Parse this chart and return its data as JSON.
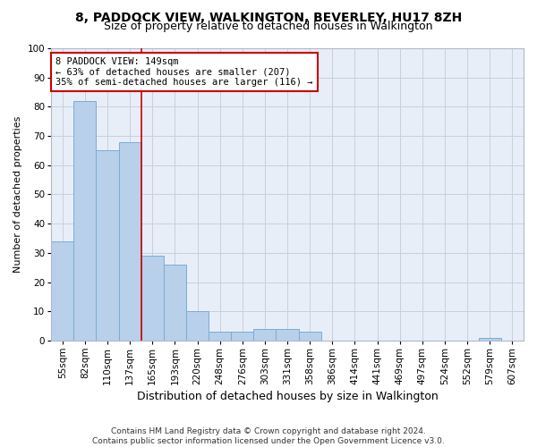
{
  "title": "8, PADDOCK VIEW, WALKINGTON, BEVERLEY, HU17 8ZH",
  "subtitle": "Size of property relative to detached houses in Walkington",
  "xlabel": "Distribution of detached houses by size in Walkington",
  "ylabel": "Number of detached properties",
  "categories": [
    "55sqm",
    "82sqm",
    "110sqm",
    "137sqm",
    "165sqm",
    "193sqm",
    "220sqm",
    "248sqm",
    "276sqm",
    "303sqm",
    "331sqm",
    "358sqm",
    "386sqm",
    "414sqm",
    "441sqm",
    "469sqm",
    "497sqm",
    "524sqm",
    "552sqm",
    "579sqm",
    "607sqm"
  ],
  "values": [
    34,
    82,
    65,
    68,
    29,
    26,
    10,
    3,
    3,
    4,
    4,
    3,
    0,
    0,
    0,
    0,
    0,
    0,
    0,
    1,
    0
  ],
  "bar_color": "#b8d0ea",
  "bar_edge_color": "#7aadd4",
  "background_color": "#e8eef8",
  "grid_color": "#c8d0e0",
  "vline_x_index": 3.5,
  "vline_color": "#cc0000",
  "annotation_text": "8 PADDOCK VIEW: 149sqm\n← 63% of detached houses are smaller (207)\n35% of semi-detached houses are larger (116) →",
  "annotation_box_color": "white",
  "annotation_box_edge_color": "#cc0000",
  "ylim": [
    0,
    100
  ],
  "yticks": [
    0,
    10,
    20,
    30,
    40,
    50,
    60,
    70,
    80,
    90,
    100
  ],
  "footer_line1": "Contains HM Land Registry data © Crown copyright and database right 2024.",
  "footer_line2": "Contains public sector information licensed under the Open Government Licence v3.0.",
  "title_fontsize": 10,
  "subtitle_fontsize": 9,
  "xlabel_fontsize": 9,
  "ylabel_fontsize": 8,
  "tick_fontsize": 7.5,
  "footer_fontsize": 6.5
}
